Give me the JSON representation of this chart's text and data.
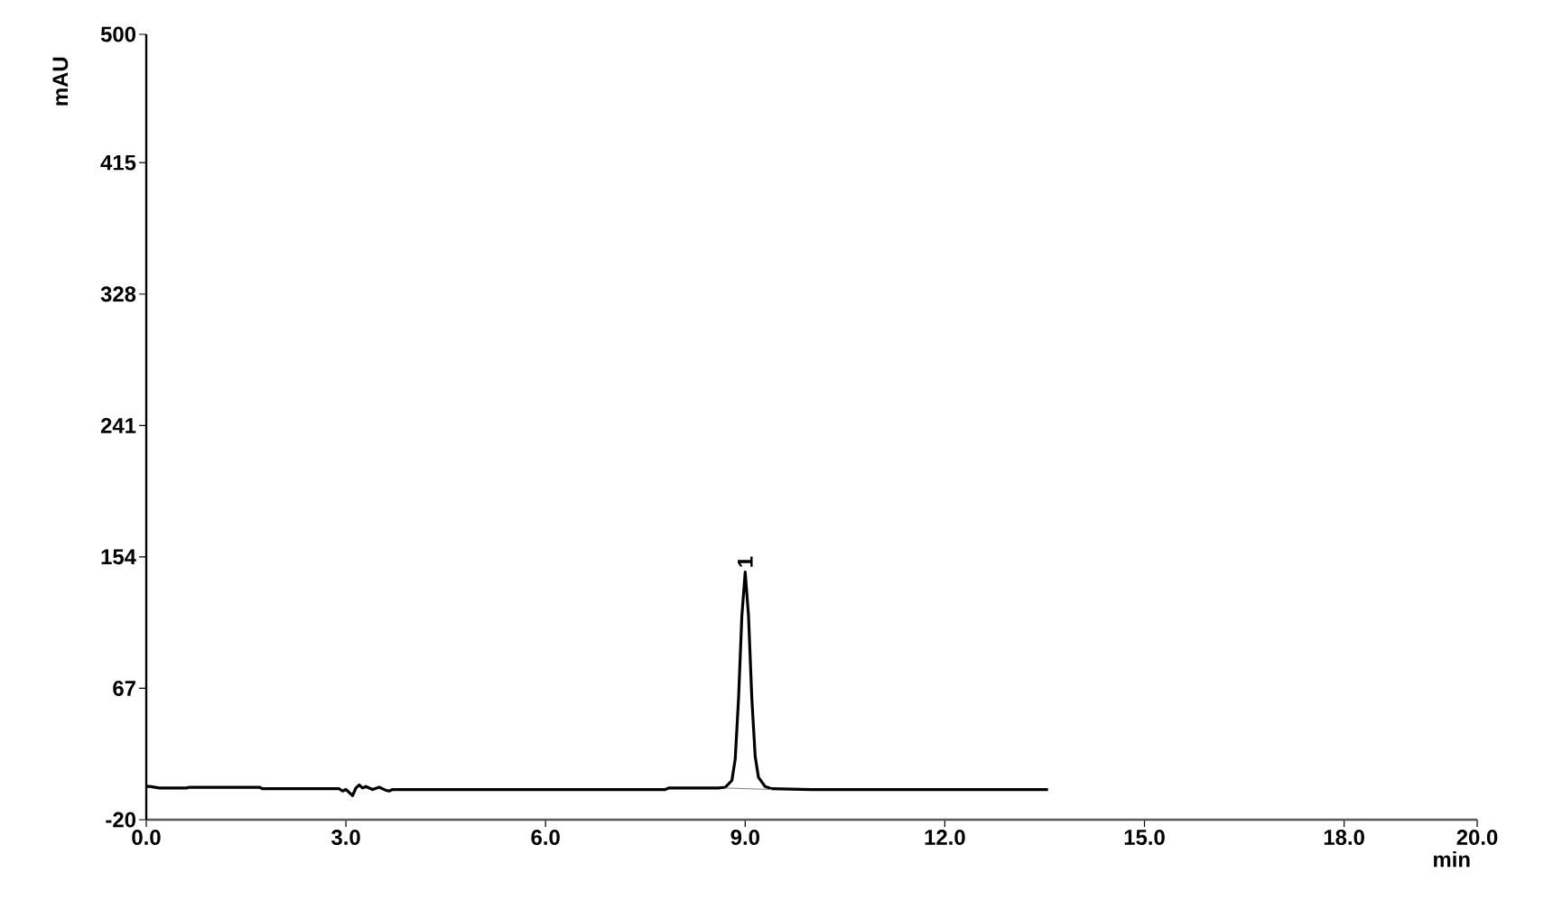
{
  "chart_data": {
    "type": "line",
    "xlabel": "min",
    "ylabel": "mAU",
    "xlim": [
      0,
      20
    ],
    "ylim": [
      -20,
      500
    ],
    "xticks": [
      {
        "value": 0,
        "label": "0.0"
      },
      {
        "value": 3,
        "label": "3.0"
      },
      {
        "value": 6,
        "label": "6.0"
      },
      {
        "value": 9,
        "label": "9.0"
      },
      {
        "value": 12,
        "label": "12.0"
      },
      {
        "value": 15,
        "label": "15.0"
      },
      {
        "value": 18,
        "label": "18.0"
      },
      {
        "value": 20,
        "label": "20.0"
      }
    ],
    "yticks": [
      -20,
      67,
      154,
      241,
      328,
      415,
      500
    ],
    "grid": false,
    "marker": "none",
    "line_style": "solid",
    "annotations": [
      {
        "text": "1",
        "x": 9.0,
        "y": 144
      }
    ],
    "series": [
      {
        "color": "#000000",
        "x": [
          0,
          0.05,
          0.2,
          0.6,
          0.65,
          1.7,
          1.75,
          2.9,
          2.95,
          3.0,
          3.05,
          3.1,
          3.15,
          3.2,
          3.25,
          3.3,
          3.4,
          3.5,
          3.6,
          3.65,
          3.7,
          4.5,
          6.0,
          7.8,
          7.85,
          8.6,
          8.7,
          8.8,
          8.85,
          8.9,
          8.95,
          9.0,
          9.05,
          9.1,
          9.15,
          9.2,
          9.3,
          9.4,
          10.0,
          12.0,
          13.55
        ],
        "values": [
          2,
          2,
          1,
          1,
          1.5,
          1.5,
          0.5,
          0.5,
          -1,
          0,
          -2,
          -4,
          1,
          3,
          1,
          2,
          0,
          1.5,
          -0.5,
          -1,
          0,
          0,
          0,
          0,
          1,
          1,
          1.5,
          6,
          20,
          60,
          115,
          144,
          115,
          60,
          22,
          8,
          2,
          0.5,
          0,
          0,
          0
        ]
      },
      {
        "color": "#808080",
        "x": [
          8.7,
          9.4
        ],
        "values": [
          1,
          0
        ]
      }
    ]
  }
}
